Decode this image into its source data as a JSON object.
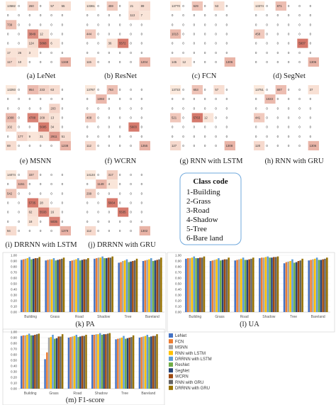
{
  "class_code": {
    "title": "Class code",
    "items": [
      "1-Building",
      "2-Grass",
      "3-Road",
      "4-Shadow",
      "5-Tree",
      "6-Bare land"
    ]
  },
  "palette": {
    "series_colors": [
      "#4472c4",
      "#ed7d31",
      "#a5a5a5",
      "#ffc000",
      "#5b9bd5",
      "#70ad47",
      "#264478",
      "#9e480e",
      "#636363",
      "#997300"
    ],
    "heat_low": "#fbe9dd",
    "heat_high": "#c0392b",
    "frame": "#6fa8dc"
  },
  "chart_data": [
    {
      "type": "heatmap",
      "caption": "(a) LeNet",
      "cells": [
        [
          13582,
          0,
          260,
          0,
          57,
          55
        ],
        [
          0,
          0,
          0,
          0,
          0,
          0
        ],
        [
          739,
          0,
          0,
          0,
          0,
          0
        ],
        [
          0,
          0,
          3849,
          12,
          0,
          0
        ],
        [
          0,
          0,
          124,
          5868,
          6,
          0
        ],
        [
          17,
          26,
          3,
          0,
          0,
          0
        ],
        [
          117,
          10,
          0,
          0,
          0,
          1348
        ]
      ]
    },
    {
      "type": "heatmap",
      "caption": "(b) ResNet",
      "cells": [
        [
          13361,
          0,
          459,
          0,
          21,
          89
        ],
        [
          0,
          0,
          0,
          0,
          113,
          7
        ],
        [
          0,
          0,
          0,
          0,
          0,
          0
        ],
        [
          444,
          0,
          0,
          0,
          0,
          0
        ],
        [
          0,
          0,
          36,
          5572,
          0,
          0
        ],
        [
          0,
          0,
          0,
          0,
          0,
          0
        ],
        [
          115,
          0,
          0,
          0,
          0,
          1204
        ]
      ]
    },
    {
      "type": "heatmap",
      "caption": "(c) FCN",
      "cells": [
        [
          13770,
          0,
          629,
          0,
          53,
          0
        ],
        [
          0,
          0,
          0,
          0,
          0,
          0
        ],
        [
          0,
          0,
          0,
          0,
          0,
          0
        ],
        [
          1013,
          0,
          0,
          0,
          0,
          0
        ],
        [
          0,
          0,
          0,
          0,
          0,
          0
        ],
        [
          0,
          0,
          0,
          0,
          0,
          0
        ],
        [
          145,
          12,
          0,
          0,
          0,
          1306
        ]
      ]
    },
    {
      "type": "heatmap",
      "caption": "(d) SegNet",
      "cells": [
        [
          13374,
          0,
          871,
          0,
          0,
          0
        ],
        [
          0,
          0,
          0,
          0,
          0,
          0
        ],
        [
          0,
          0,
          0,
          0,
          0,
          0
        ],
        [
          458,
          0,
          0,
          0,
          0,
          0
        ],
        [
          0,
          0,
          0,
          0,
          5937,
          0
        ],
        [
          0,
          0,
          0,
          0,
          0,
          0
        ],
        [
          0,
          0,
          0,
          0,
          0,
          1306
        ]
      ]
    },
    {
      "type": "heatmap",
      "caption": "(e) MSNN",
      "cells": [
        [
          13293,
          0,
          954,
          233,
          63,
          0
        ],
        [
          0,
          0,
          0,
          0,
          0,
          0
        ],
        [
          0,
          0,
          0,
          0,
          203,
          0
        ],
        [
          1008,
          0,
          4788,
          209,
          13,
          0
        ],
        [
          102,
          0,
          0,
          5685,
          34,
          0
        ],
        [
          0,
          177,
          9,
          31,
          2911,
          51
        ],
        [
          69,
          0,
          0,
          0,
          0,
          1238
        ]
      ]
    },
    {
      "type": "heatmap",
      "caption": "(f) WCRN",
      "cells": [
        [
          13787,
          0,
          763,
          0,
          0,
          0
        ],
        [
          0,
          1093,
          0,
          0,
          0,
          0
        ],
        [
          0,
          0,
          0,
          0,
          0,
          0
        ],
        [
          408,
          0,
          0,
          0,
          0,
          0
        ],
        [
          0,
          0,
          0,
          0,
          5603,
          0
        ],
        [
          0,
          0,
          0,
          0,
          0,
          0
        ],
        [
          112,
          0,
          0,
          0,
          0,
          1355
        ]
      ]
    },
    {
      "type": "heatmap",
      "caption": "(g) RNN with LSTM",
      "cells": [
        [
          13733,
          0,
          653,
          0,
          57,
          0
        ],
        [
          0,
          0,
          0,
          0,
          0,
          0
        ],
        [
          0,
          0,
          0,
          0,
          0,
          0
        ],
        [
          521,
          0,
          5763,
          12,
          0,
          0
        ],
        [
          0,
          0,
          0,
          0,
          0,
          0
        ],
        [
          0,
          0,
          0,
          0,
          0,
          0
        ],
        [
          127,
          0,
          0,
          0,
          0,
          1308
        ]
      ]
    },
    {
      "type": "heatmap",
      "caption": "(h) RNN with GRU",
      "cells": [
        [
          13751,
          0,
          887,
          0,
          0,
          37
        ],
        [
          0,
          1023,
          0,
          0,
          0,
          0
        ],
        [
          0,
          0,
          0,
          0,
          0,
          0
        ],
        [
          441,
          0,
          0,
          0,
          0,
          0
        ],
        [
          0,
          0,
          0,
          0,
          0,
          0
        ],
        [
          0,
          0,
          0,
          0,
          0,
          0
        ],
        [
          120,
          0,
          0,
          0,
          0,
          1306
        ]
      ]
    },
    {
      "type": "heatmap",
      "caption": "(i) DRRNN with LSTM",
      "cells": [
        [
          14074,
          0,
          337,
          0,
          0,
          0
        ],
        [
          0,
          1151,
          0,
          0,
          0,
          0
        ],
        [
          542,
          0,
          0,
          0,
          0,
          0
        ],
        [
          0,
          0,
          5735,
          28,
          0,
          0
        ],
        [
          0,
          0,
          62,
          5533,
          16,
          0
        ],
        [
          0,
          0,
          18,
          0,
          5035,
          0
        ],
        [
          94,
          0,
          0,
          0,
          0,
          1379
        ]
      ]
    },
    {
      "type": "heatmap",
      "caption": "(j) DRRNN with GRU",
      "cells": [
        [
          14134,
          0,
          317,
          0,
          0,
          0
        ],
        [
          0,
          1149,
          4,
          0,
          0,
          0
        ],
        [
          299,
          0,
          0,
          0,
          0,
          0
        ],
        [
          0,
          0,
          5664,
          0,
          0,
          0
        ],
        [
          0,
          0,
          0,
          5535,
          0,
          0
        ],
        [
          0,
          0,
          0,
          0,
          0,
          0
        ],
        [
          112,
          0,
          0,
          0,
          0,
          1302
        ]
      ]
    },
    {
      "type": "bar",
      "caption": "(k) PA",
      "categories": [
        "Building",
        "Grass",
        "Road",
        "Shadow",
        "Tree",
        "Bareland"
      ],
      "ylim": [
        0,
        1
      ],
      "yticks": [
        "0.00",
        "0.10",
        "0.20",
        "0.30",
        "0.40",
        "0.50",
        "0.60",
        "0.70",
        "0.80",
        "0.90",
        "1.00"
      ],
      "series": [
        {
          "name": "LeNet",
          "values": [
            0.92,
            0.91,
            0.9,
            0.94,
            0.87,
            0.9
          ]
        },
        {
          "name": "FCN",
          "values": [
            0.93,
            0.92,
            0.91,
            0.95,
            0.88,
            0.91
          ]
        },
        {
          "name": "MSNN",
          "values": [
            0.94,
            0.93,
            0.92,
            0.96,
            0.9,
            0.92
          ]
        },
        {
          "name": "RNN with LSTM",
          "values": [
            0.95,
            0.93,
            0.93,
            0.96,
            0.91,
            0.93
          ]
        },
        {
          "name": "DRRNN with LSTM",
          "values": [
            0.97,
            0.95,
            0.95,
            0.98,
            0.93,
            0.95
          ]
        },
        {
          "name": "ResNet",
          "values": [
            0.93,
            0.91,
            0.91,
            0.95,
            0.88,
            0.9
          ]
        },
        {
          "name": "SegNet",
          "values": [
            0.94,
            0.92,
            0.92,
            0.95,
            0.89,
            0.91
          ]
        },
        {
          "name": "WCRN",
          "values": [
            0.95,
            0.93,
            0.93,
            0.96,
            0.9,
            0.92
          ]
        },
        {
          "name": "RNN with GRU",
          "values": [
            0.95,
            0.94,
            0.93,
            0.96,
            0.91,
            0.93
          ]
        },
        {
          "name": "DRRNN with GRU",
          "values": [
            0.97,
            0.96,
            0.95,
            0.98,
            0.94,
            0.96
          ]
        }
      ]
    },
    {
      "type": "bar",
      "caption": "(l) UA",
      "categories": [
        "Building",
        "Grass",
        "Road",
        "Shadow",
        "Tree",
        "Bareland"
      ],
      "ylim": [
        0,
        1
      ],
      "yticks": [
        "0.00",
        "0.10",
        "0.20",
        "0.30",
        "0.40",
        "0.50",
        "0.60",
        "0.70",
        "0.80",
        "0.90",
        "1.00"
      ],
      "series": [
        {
          "name": "LeNet",
          "values": [
            0.94,
            0.9,
            0.91,
            0.95,
            0.86,
            0.91
          ]
        },
        {
          "name": "FCN",
          "values": [
            0.95,
            0.91,
            0.92,
            0.96,
            0.88,
            0.92
          ]
        },
        {
          "name": "MSNN",
          "values": [
            0.95,
            0.92,
            0.93,
            0.96,
            0.89,
            0.93
          ]
        },
        {
          "name": "RNN with LSTM",
          "values": [
            0.96,
            0.93,
            0.94,
            0.97,
            0.9,
            0.94
          ]
        },
        {
          "name": "DRRNN with LSTM",
          "values": [
            0.98,
            0.95,
            0.96,
            0.98,
            0.93,
            0.96
          ]
        },
        {
          "name": "ResNet",
          "values": [
            0.95,
            0.91,
            0.92,
            0.96,
            0.87,
            0.92
          ]
        },
        {
          "name": "SegNet",
          "values": [
            0.95,
            0.92,
            0.92,
            0.96,
            0.88,
            0.92
          ]
        },
        {
          "name": "WCRN",
          "values": [
            0.96,
            0.93,
            0.93,
            0.97,
            0.9,
            0.93
          ]
        },
        {
          "name": "RNN with GRU",
          "values": [
            0.96,
            0.93,
            0.94,
            0.97,
            0.91,
            0.94
          ]
        },
        {
          "name": "DRRNN with GRU",
          "values": [
            0.98,
            0.96,
            0.96,
            0.98,
            0.94,
            0.96
          ]
        }
      ]
    },
    {
      "type": "bar",
      "caption": "(m) F1-score",
      "categories": [
        "Building",
        "Grass",
        "Road",
        "Shadow",
        "Tree",
        "Bareland"
      ],
      "ylim": [
        0,
        1
      ],
      "yticks": [
        "0.00",
        "0.10",
        "0.20",
        "0.30",
        "0.40",
        "0.50",
        "0.60",
        "0.70",
        "0.80",
        "0.90",
        "1.00"
      ],
      "legend_position": "right",
      "series": [
        {
          "name": "LeNet",
          "values": [
            0.93,
            0.52,
            0.9,
            0.95,
            0.87,
            0.9
          ]
        },
        {
          "name": "FCN",
          "values": [
            0.94,
            0.64,
            0.91,
            0.95,
            0.88,
            0.91
          ]
        },
        {
          "name": "MSNN",
          "values": [
            0.94,
            0.9,
            0.92,
            0.96,
            0.89,
            0.92
          ]
        },
        {
          "name": "RNN with LSTM",
          "values": [
            0.95,
            0.91,
            0.93,
            0.96,
            0.9,
            0.93
          ]
        },
        {
          "name": "DRRNN with LSTM",
          "values": [
            0.97,
            0.95,
            0.95,
            0.98,
            0.93,
            0.95
          ]
        },
        {
          "name": "ResNet",
          "values": [
            0.94,
            0.88,
            0.91,
            0.95,
            0.88,
            0.91
          ]
        },
        {
          "name": "SegNet",
          "values": [
            0.94,
            0.89,
            0.92,
            0.96,
            0.89,
            0.92
          ]
        },
        {
          "name": "WCRN",
          "values": [
            0.95,
            0.92,
            0.93,
            0.96,
            0.9,
            0.93
          ]
        },
        {
          "name": "RNN with GRU",
          "values": [
            0.96,
            0.92,
            0.93,
            0.97,
            0.91,
            0.93
          ]
        },
        {
          "name": "DRRNN with GRU",
          "values": [
            0.97,
            0.96,
            0.95,
            0.98,
            0.94,
            0.96
          ]
        }
      ]
    }
  ]
}
